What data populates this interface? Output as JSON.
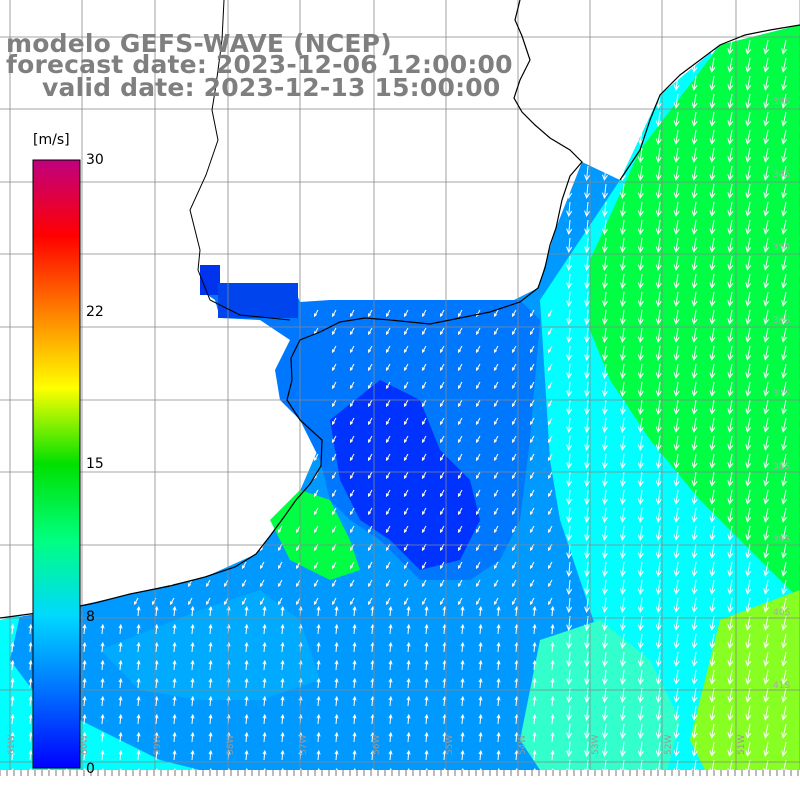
{
  "title": {
    "line1": "modelo GEFS-WAVE (NCEP)",
    "line2": "forecast date: 2023-12-06 12:00:00",
    "line3": "valid date: 2023-12-13 15:00:00"
  },
  "colorbar": {
    "unit": "[m/s]",
    "ticks": [
      "30",
      "22",
      "15",
      "8",
      "0"
    ],
    "colors": [
      "#0000ff",
      "#0070ff",
      "#00d8ff",
      "#00ff80",
      "#00e000",
      "#ffff00",
      "#ff8000",
      "#ff0000",
      "#c00080"
    ]
  },
  "lon_labels": [
    "61W",
    "60W",
    "59W",
    "58W",
    "57W",
    "56W",
    "55W",
    "54W",
    "53W",
    "52W",
    "51W",
    "50W"
  ],
  "lat_labels": [
    "33S",
    "34S",
    "35S",
    "36S",
    "37S",
    "38S",
    "39S",
    "40S",
    "41S"
  ],
  "field": {
    "variable": "wind speed",
    "units": "m/s",
    "palette": {
      "dark_blue": "#0033ff",
      "blue": "#0077ff",
      "light_blue": "#0099ff",
      "cyan": "#00ffff",
      "green": "#00ff44",
      "light_green": "#88ff22"
    }
  }
}
